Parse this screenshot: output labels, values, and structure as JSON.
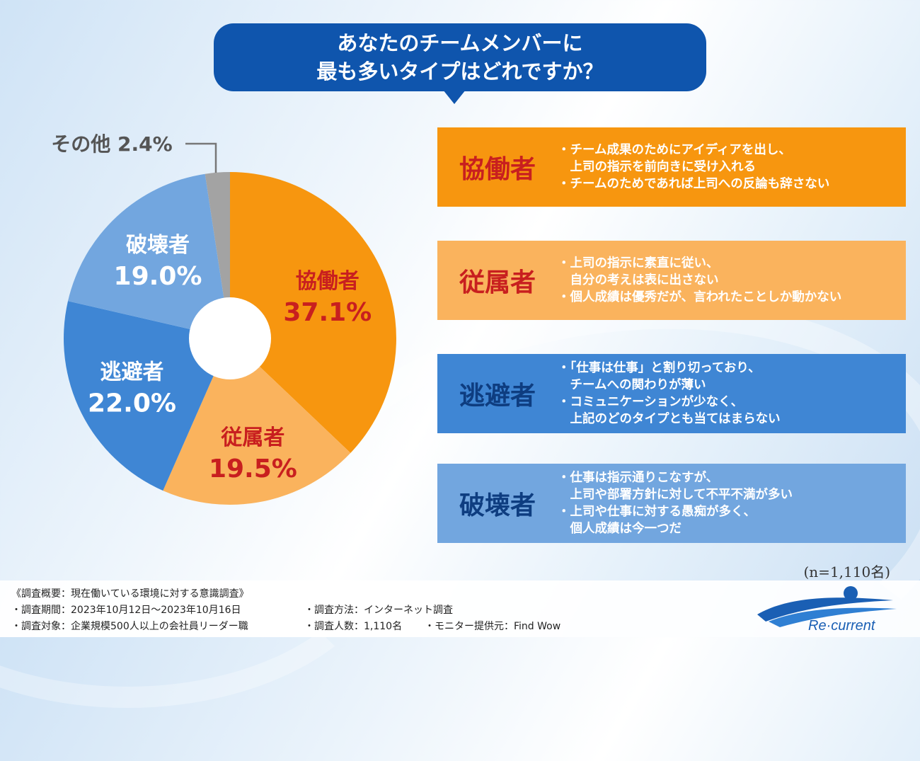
{
  "question": {
    "line1": "あなたのチームメンバーに",
    "line2": "最も多いタイプはどれですか？"
  },
  "chart_data": {
    "type": "pie",
    "title": "あなたのチームメンバーに最も多いタイプはどれですか？",
    "categories": [
      "協働者",
      "従属者",
      "逃避者",
      "破壊者",
      "その他"
    ],
    "values": [
      37.1,
      19.5,
      22.0,
      19.0,
      2.4
    ],
    "value_labels": [
      "37.1%",
      "19.5%",
      "22.0%",
      "19.0%",
      "2.4%"
    ],
    "colors": [
      "#f7960f",
      "#fab35d",
      "#3f86d4",
      "#72a6df",
      "#a3a3a3"
    ],
    "donut_hole": true,
    "other_label": "その他 2.4%",
    "n_label": "(n=1,110名)"
  },
  "types": [
    {
      "name": "協働者",
      "lines": [
        "・チーム成果のためにアイディアを出し、",
        "　上司の指示を前向きに受け入れる",
        "・チームのためであれば上司への反論も辞さない"
      ],
      "bg": "#f7960f",
      "name_color": "#c81f1f",
      "text_color": "#ffffff"
    },
    {
      "name": "従属者",
      "lines": [
        "・上司の指示に素直に従い、",
        "　自分の考えは表に出さない",
        "・個人成績は優秀だが、言われたことしか動かない"
      ],
      "bg": "#fab35d",
      "name_color": "#c81f1f",
      "text_color": "#ffffff"
    },
    {
      "name": "逃避者",
      "lines": [
        "・「仕事は仕事」と割り切っており、",
        "　チームへの関わりが薄い",
        "・コミュニケーションが少なく、",
        "　上記のどのタイプとも当てはまらない"
      ],
      "bg": "#3f86d4",
      "name_color": "#0e3d80",
      "text_color": "#ffffff"
    },
    {
      "name": "破壊者",
      "lines": [
        "・仕事は指示通りこなすが、",
        "　上司や部署方針に対して不平不満が多い",
        "・上司や仕事に対する愚痴が多く、",
        "　個人成績は今一つだ"
      ],
      "bg": "#72a6df",
      "name_color": "#0e3d80",
      "text_color": "#ffffff"
    }
  ],
  "footer": {
    "title": "《調査概要：現在働いている環境に対する意識調査》",
    "period": "・調査期間：2023年10月12日〜2023年10月16日",
    "method": "・調査方法：インターネット調査",
    "target": "・調査対象：企業規模500人以上の会社員リーダー職",
    "count": "・調査人数：1,110名",
    "monitor": "・モニター提供元：Find Wow"
  },
  "logo": {
    "text": "Re·current"
  }
}
